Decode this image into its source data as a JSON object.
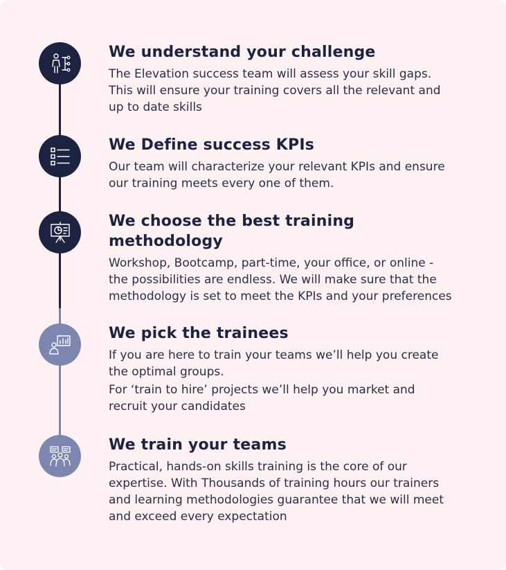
{
  "steps": [
    {
      "title": "We understand your challenge",
      "desc": [
        "The Elevation success team will assess your skill gaps.\nThis will ensure your training covers all the relevant and\nup to date skills"
      ],
      "icon": "person-network-icon"
    },
    {
      "title": "We Define success KPIs",
      "desc": [
        "Our  team will characterize  your relevant KPIs and ensure\nour training meets every one of them."
      ],
      "icon": "checklist-icon"
    },
    {
      "title": "We choose the best training\nmethodology",
      "desc": [
        "Workshop, Bootcamp, part-time, your office, or online -\nthe possibilities are endless. We will make sure that the\nmethodology is set  to meet the KPIs and your preferences"
      ],
      "icon": "presentation-board-icon"
    },
    {
      "title": "We pick the trainees",
      "desc": [
        "If you are here to train your teams we’ll help you create\nthe optimal groups.",
        "For ‘train to hire’ projects we’ll help you market and\nrecruit your candidates"
      ],
      "icon": "analytics-user-icon"
    },
    {
      "title": "We train your teams",
      "desc": [
        "Practical, hands-on skills training is the core of our\nexpertise. With Thousands of training hours our trainers\nand learning methodologies guarantee that we will meet\nand exceed every expectation"
      ],
      "icon": "team-training-icon"
    }
  ],
  "colors": {
    "dark": "#1c2341",
    "light": "#7d86ae",
    "background": "#fdf1f3"
  }
}
